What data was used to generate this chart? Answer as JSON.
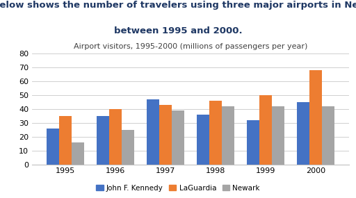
{
  "title_line1": "The chart below shows the number of travelers using three major airports in New York City",
  "title_line2": "between 1995 and 2000.",
  "chart_title": "Airport visitors, 1995-2000 (millions of passengers per year)",
  "years": [
    1995,
    1996,
    1997,
    1998,
    1999,
    2000
  ],
  "kennedy": [
    26,
    35,
    47,
    36,
    32,
    45
  ],
  "laguardia": [
    35,
    40,
    43,
    46,
    50,
    68
  ],
  "newark": [
    16,
    25,
    39,
    42,
    42,
    42
  ],
  "kennedy_color": "#4472C4",
  "laguardia_color": "#ED7D31",
  "newark_color": "#A5A5A5",
  "ylim": [
    0,
    80
  ],
  "yticks": [
    0,
    10,
    20,
    30,
    40,
    50,
    60,
    70,
    80
  ],
  "background_color": "#FFFFFF",
  "legend_labels": [
    "John F. Kennedy",
    "LaGuardia",
    "Newark"
  ],
  "bar_width": 0.25,
  "title_color": "#1F3864",
  "chart_title_color": "#404040",
  "title_fontsize": 9.5,
  "chart_title_fontsize": 8.0
}
